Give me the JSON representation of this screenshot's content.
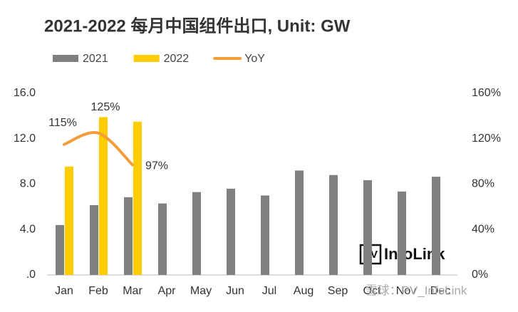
{
  "chart_data": {
    "type": "bar",
    "title": "2021-2022 每月中国组件出口, Unit: GW",
    "categories": [
      "Jan",
      "Feb",
      "Mar",
      "Apr",
      "May",
      "Jun",
      "Jul",
      "Aug",
      "Sep",
      "Oct",
      "Nov",
      "Dec"
    ],
    "series": [
      {
        "name": "2021",
        "color": "#808080",
        "values": [
          4.4,
          6.15,
          6.85,
          6.3,
          7.3,
          7.6,
          7.0,
          9.2,
          8.8,
          8.35,
          7.35,
          8.65
        ]
      },
      {
        "name": "2022",
        "color": "#ffcc00",
        "values": [
          9.55,
          13.9,
          13.5,
          null,
          null,
          null,
          null,
          null,
          null,
          null,
          null,
          null
        ]
      },
      {
        "name": "YoY",
        "type": "line",
        "axis": "y2",
        "color": "#f39c3a",
        "values": [
          115,
          125,
          97,
          null,
          null,
          null,
          null,
          null,
          null,
          null,
          null,
          null
        ],
        "value_labels": [
          "115%",
          "125%",
          "97%",
          null,
          null,
          null,
          null,
          null,
          null,
          null,
          null,
          null
        ]
      }
    ],
    "ylim": [
      0,
      16
    ],
    "yticks": [
      {
        "value": 0,
        "label": ".0"
      },
      {
        "value": 4,
        "label": "4.0"
      },
      {
        "value": 8,
        "label": "8.0"
      },
      {
        "value": 12,
        "label": "12.0"
      },
      {
        "value": 16,
        "label": "16.0"
      }
    ],
    "y2lim": [
      0,
      160
    ],
    "y2ticks": [
      {
        "value": 0,
        "label": "0%"
      },
      {
        "value": 40,
        "label": "40%"
      },
      {
        "value": 80,
        "label": "80%"
      },
      {
        "value": 120,
        "label": "120%"
      },
      {
        "value": 160,
        "label": "160%"
      }
    ],
    "grid": false,
    "legend": "top",
    "logo": {
      "badge": "PV",
      "text": "InfoLink"
    },
    "watermark": "雪球：PV_InfoLink"
  }
}
